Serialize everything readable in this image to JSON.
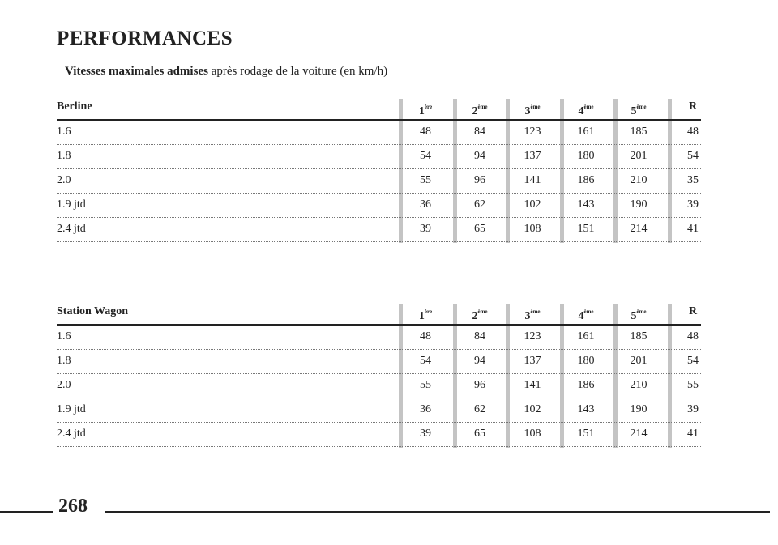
{
  "title": "PERFORMANCES",
  "subtitle": {
    "bold": "Vitesses maximales admises",
    "rest": "après rodage de la voiture (en km/h)"
  },
  "tables": [
    {
      "header": "Berline",
      "columns": [
        {
          "base": "1",
          "sup": "ère"
        },
        {
          "base": "2",
          "sup": "ème"
        },
        {
          "base": "3",
          "sup": "ème"
        },
        {
          "base": "4",
          "sup": "ème"
        },
        {
          "base": "5",
          "sup": "ème"
        },
        {
          "base": "R"
        }
      ],
      "rows": [
        {
          "label": "1.6",
          "values": [
            48,
            84,
            123,
            161,
            185,
            48
          ]
        },
        {
          "label": "1.8",
          "values": [
            54,
            94,
            137,
            180,
            201,
            54
          ]
        },
        {
          "label": "2.0",
          "values": [
            55,
            96,
            141,
            186,
            210,
            35
          ]
        },
        {
          "label": "1.9 jtd",
          "values": [
            36,
            62,
            102,
            143,
            190,
            39
          ]
        },
        {
          "label": "2.4 jtd",
          "values": [
            39,
            65,
            108,
            151,
            214,
            41
          ]
        }
      ]
    },
    {
      "header": "Station Wagon",
      "columns": [
        {
          "base": "1",
          "sup": "ère"
        },
        {
          "base": "2",
          "sup": "ème"
        },
        {
          "base": "3",
          "sup": "ème"
        },
        {
          "base": "4",
          "sup": "ème"
        },
        {
          "base": "5",
          "sup": "ème"
        },
        {
          "base": "R"
        }
      ],
      "rows": [
        {
          "label": "1.6",
          "values": [
            48,
            84,
            123,
            161,
            185,
            48
          ]
        },
        {
          "label": "1.8",
          "values": [
            54,
            94,
            137,
            180,
            201,
            54
          ]
        },
        {
          "label": "2.0",
          "values": [
            55,
            96,
            141,
            186,
            210,
            55
          ]
        },
        {
          "label": "1.9 jtd",
          "values": [
            36,
            62,
            102,
            143,
            190,
            39
          ]
        },
        {
          "label": "2.4 jtd",
          "values": [
            39,
            65,
            108,
            151,
            214,
            41
          ]
        }
      ]
    }
  ],
  "page_number": "268"
}
